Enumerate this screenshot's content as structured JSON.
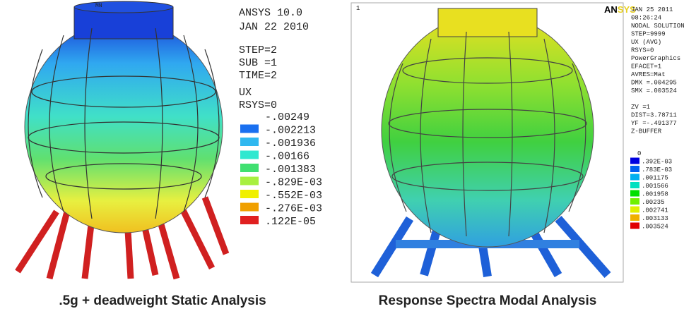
{
  "left_panel": {
    "marker": "MN",
    "header": [
      "ANSYS 10.0",
      "JAN 22 2010"
    ],
    "info": [
      "STEP=2",
      "SUB =1",
      "TIME=2",
      "UX",
      "RSYS=0"
    ],
    "legend": [
      "-.00249",
      "-.002213",
      "-.001936",
      "-.00166",
      "-.001383",
      "-.829E-03",
      "-.552E-03",
      "-.276E-03",
      ".122E-05"
    ],
    "caption": ".5g + deadweight Static Analysis"
  },
  "right_panel": {
    "corner_number": "1",
    "logo": [
      "AN",
      "SYS"
    ],
    "info": [
      "JAN 25 2011",
      "08:26:24",
      "NODAL SOLUTION",
      "STEP=9999",
      "UX        (AVG)",
      "RSYS=0",
      "PowerGraphics",
      "EFACET=1",
      "AVRES=Mat",
      "DMX =.004295",
      "SMX =.003524",
      "",
      "ZV   =1",
      "DIST=3.78711",
      "YF   =-.491377",
      "Z-BUFFER"
    ],
    "legend": [
      "0",
      ".392E-03",
      ".783E-03",
      ".001175",
      ".001566",
      ".001958",
      ".00235",
      ".002741",
      ".003133",
      ".003524"
    ],
    "caption": "Response Spectra Modal Analysis"
  }
}
